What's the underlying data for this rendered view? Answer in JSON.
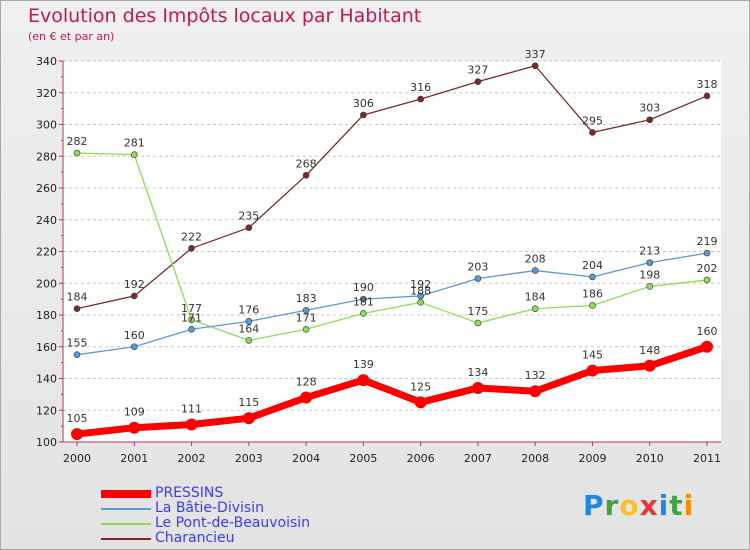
{
  "header": {
    "title": "Evolution des Impôts locaux par Habitant",
    "subtitle": "(en € et par an)"
  },
  "logo": {
    "letters": [
      "P",
      "r",
      "o",
      "x",
      "i",
      "t",
      "i"
    ],
    "colors": [
      "#1e88e5",
      "#43a047",
      "#fbc02d",
      "#e53935",
      "#1e88e5",
      "#43a047",
      "#fb8c00"
    ]
  },
  "chart_data": {
    "type": "line",
    "x": [
      "2000",
      "2001",
      "2002",
      "2003",
      "2004",
      "2005",
      "2006",
      "2007",
      "2008",
      "2009",
      "2010",
      "2011"
    ],
    "ylim": [
      100,
      340
    ],
    "yticks": [
      100,
      120,
      140,
      160,
      180,
      200,
      220,
      240,
      260,
      280,
      300,
      320,
      340
    ],
    "grid": "horizontal dashed",
    "legend_position": "bottom-left",
    "series": [
      {
        "name": "PRESSINS",
        "color": "#ff0000",
        "values": [
          105,
          109,
          111,
          115,
          128,
          139,
          125,
          134,
          132,
          145,
          148,
          160
        ]
      },
      {
        "name": "La Bâtie-Divisin",
        "color": "#5b9bd5",
        "values": [
          155,
          160,
          171,
          176,
          183,
          190,
          192,
          203,
          208,
          204,
          213,
          219
        ]
      },
      {
        "name": "Le Pont-de-Beauvoisin",
        "color": "#8edd5a",
        "values": [
          282,
          281,
          177,
          164,
          171,
          181,
          188,
          175,
          184,
          186,
          198,
          202
        ]
      },
      {
        "name": "Charancieu",
        "color": "#7a2a2a",
        "values": [
          184,
          192,
          222,
          235,
          268,
          306,
          316,
          327,
          337,
          295,
          303,
          318
        ]
      }
    ]
  }
}
